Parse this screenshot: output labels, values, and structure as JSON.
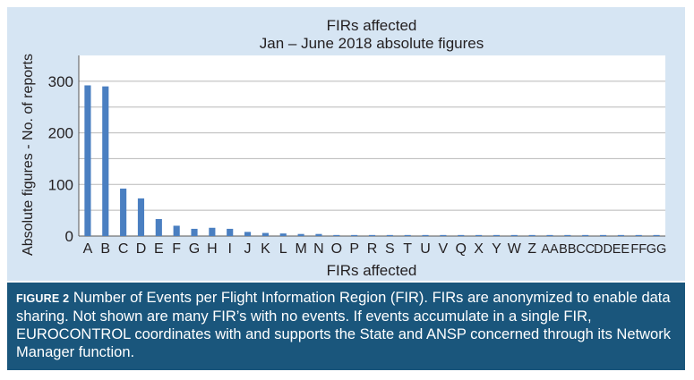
{
  "chart_data": {
    "type": "bar",
    "title": "FIRs affected",
    "subtitle": "Jan – June 2018 absolute figures",
    "xlabel": "FIRs affected",
    "ylabel": "Absolute figures - No. of reports",
    "ylim": [
      0,
      350
    ],
    "yticks": [
      0,
      100,
      200,
      300
    ],
    "grid": true,
    "categories": [
      "A",
      "B",
      "C",
      "D",
      "E",
      "F",
      "G",
      "H",
      "I",
      "J",
      "K",
      "L",
      "M",
      "N",
      "O",
      "P",
      "R",
      "S",
      "T",
      "U",
      "V",
      "Q",
      "X",
      "Y",
      "W",
      "Z",
      "AA",
      "BB",
      "CC",
      "DD",
      "EE",
      "FF",
      "GG"
    ],
    "values": [
      292,
      290,
      92,
      73,
      33,
      20,
      14,
      16,
      14,
      8,
      6,
      5,
      4,
      4,
      2,
      2,
      2,
      2,
      2,
      2,
      2,
      2,
      2,
      2,
      2,
      2,
      2,
      2,
      2,
      2,
      2,
      2,
      2
    ],
    "colors": {
      "bar": "#4a7fc1",
      "grid": "#b8b8b8",
      "plot_bg": "#ffffff",
      "frame_bg": "#d6e5f3",
      "text": "#231f20"
    }
  },
  "caption": {
    "label": "FIGURE 2",
    "text": "Number of Events per Flight Information Region (FIR). FIRs are anonymized to enable data sharing. Not shown are many FIR’s with no events. If events accumulate in a single FIR, EUROCONTROL coordinates with and supports the State and ANSP concerned through its Network Manager function."
  }
}
